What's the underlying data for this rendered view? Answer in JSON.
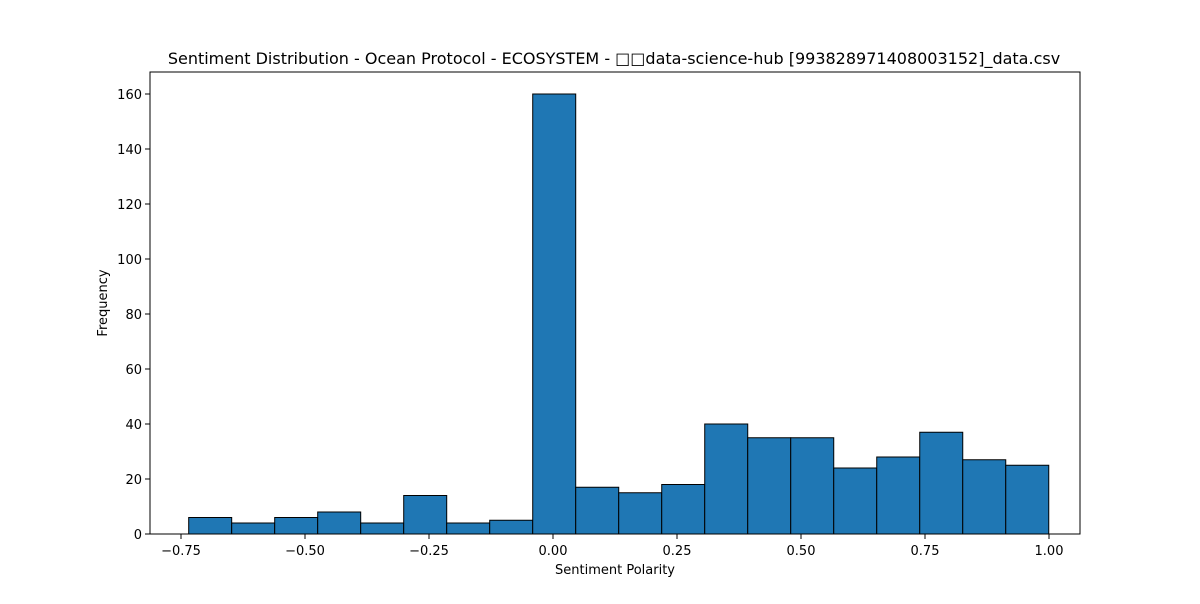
{
  "chart_data": {
    "type": "histogram",
    "title": "Sentiment Distribution - Ocean Protocol - ECOSYSTEM - □□data-science-hub [993828971408003152]_data.csv",
    "xlabel": "Sentiment Polarity",
    "ylabel": "Frequency",
    "xlim": [
      -0.8125,
      1.0625
    ],
    "ylim": [
      0,
      168
    ],
    "xticks": [
      -0.75,
      -0.5,
      -0.25,
      0.0,
      0.25,
      0.5,
      0.75,
      1.0
    ],
    "xtick_labels": [
      "−0.75",
      "−0.50",
      "−0.25",
      "0.00",
      "0.25",
      "0.50",
      "0.75",
      "1.00"
    ],
    "yticks": [
      0,
      20,
      40,
      60,
      80,
      100,
      120,
      140,
      160
    ],
    "ytick_labels": [
      "0",
      "20",
      "40",
      "60",
      "80",
      "100",
      "120",
      "140",
      "160"
    ],
    "bin_edges": [
      -0.7345,
      -0.6478,
      -0.5611,
      -0.4744,
      -0.3877,
      -0.301,
      -0.2143,
      -0.1276,
      -0.0409,
      0.0458,
      0.1325,
      0.2192,
      0.3059,
      0.3926,
      0.4793,
      0.566,
      0.6527,
      0.7394,
      0.8261,
      0.9128,
      0.9995
    ],
    "counts": [
      6,
      4,
      6,
      8,
      4,
      14,
      4,
      5,
      160,
      17,
      15,
      18,
      40,
      35,
      35,
      24,
      28,
      37,
      27,
      25
    ],
    "bar_color": "#1f77b4",
    "edge_color": "#000000"
  }
}
